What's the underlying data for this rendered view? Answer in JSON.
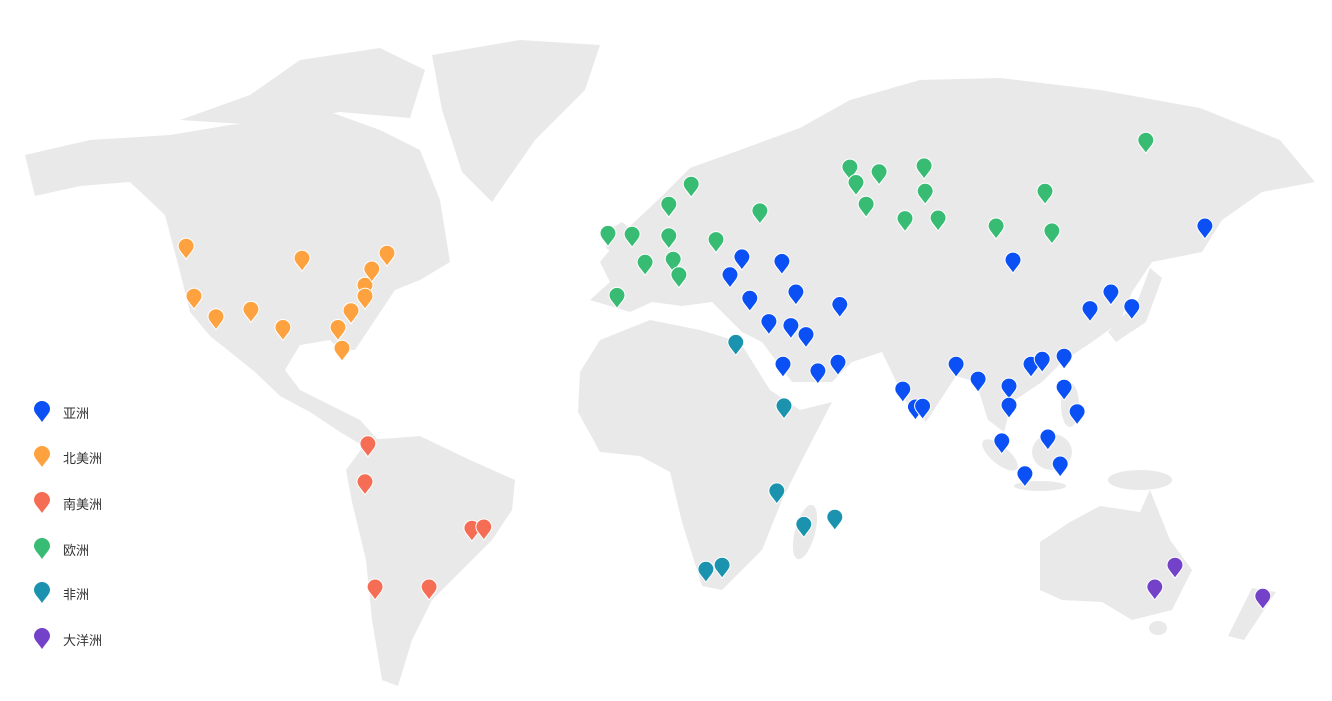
{
  "projection": "miller",
  "land_color": "#e9e9e9",
  "legend": [
    {
      "key": "asia",
      "label": "亚洲",
      "color": "#0a50f5"
    },
    {
      "key": "north_america",
      "label": "北美洲",
      "color": "#fea23f"
    },
    {
      "key": "south_america",
      "label": "南美洲",
      "color": "#f66d55"
    },
    {
      "key": "europe",
      "label": "欧洲",
      "color": "#38bc74"
    },
    {
      "key": "africa",
      "label": "非洲",
      "color": "#1c93ae"
    },
    {
      "key": "oceania",
      "label": "大洋洲",
      "color": "#7441c9"
    }
  ],
  "markers": {
    "asia": [
      [
        47.5,
        29.7
      ],
      [
        43.5,
        26.4
      ],
      [
        46.5,
        40.8
      ],
      [
        38,
        31.9
      ],
      [
        39.5,
        44.7
      ],
      [
        32.3,
        37.2
      ],
      [
        31.3,
        43.3
      ],
      [
        29,
        47.5
      ],
      [
        36.5,
        56.9
      ],
      [
        21.3,
        41.1
      ],
      [
        19.5,
        50.8
      ],
      [
        21.8,
        56.4
      ],
      [
        14.6,
        74.4
      ],
      [
        9.7,
        77.9
      ],
      [
        9.9,
        79.9
      ],
      [
        21.3,
        89.2
      ],
      [
        17.3,
        95.3
      ],
      [
        15.4,
        103.9
      ],
      [
        10.2,
        103.9
      ],
      [
        0.3,
        101.9
      ],
      [
        -8.8,
        108.3
      ],
      [
        1.4,
        114.7
      ],
      [
        -6.1,
        118.1
      ],
      [
        21.3,
        110
      ],
      [
        22.6,
        113.1
      ],
      [
        23.4,
        119.2
      ],
      [
        15.1,
        119.2
      ],
      [
        8.4,
        122.8
      ],
      [
        46.8,
        105
      ],
      [
        35.5,
        126.4
      ],
      [
        39.5,
        132.2
      ],
      [
        36,
        138
      ],
      [
        54,
        158.3
      ]
    ],
    "north_america": [
      [
        49.8,
        -124.7
      ],
      [
        38.5,
        -122.5
      ],
      [
        33.5,
        -116.4
      ],
      [
        35.3,
        -106.7
      ],
      [
        30.8,
        -97.8
      ],
      [
        47.2,
        -92.5
      ],
      [
        30.8,
        -82.5
      ],
      [
        25.5,
        -81.4
      ],
      [
        35,
        -78.9
      ],
      [
        41.1,
        -75
      ],
      [
        38.5,
        -75
      ],
      [
        44.8,
        -73.1
      ],
      [
        48.3,
        -68.9
      ]
    ],
    "south_america": [
      [
        -0.5,
        -74.2
      ],
      [
        -11,
        -75
      ],
      [
        -23.5,
        -45.3
      ],
      [
        -23.2,
        -42
      ],
      [
        -38.3,
        -72.2
      ],
      [
        -38.3,
        -57.2
      ]
    ],
    "europe": [
      [
        52.5,
        -7.5
      ],
      [
        52.3,
        -0.8
      ],
      [
        38.7,
        -5
      ],
      [
        46.3,
        2.8
      ],
      [
        52,
        9.4
      ],
      [
        47,
        10.6
      ],
      [
        43.5,
        12.2
      ],
      [
        58.3,
        9.4
      ],
      [
        62,
        15.6
      ],
      [
        51.2,
        22.5
      ],
      [
        57,
        34.7
      ],
      [
        65,
        59.7
      ],
      [
        62.3,
        61.4
      ],
      [
        64.2,
        67.8
      ],
      [
        58.3,
        64.2
      ],
      [
        65.2,
        80.3
      ],
      [
        60.7,
        80.6
      ],
      [
        55.5,
        75
      ],
      [
        55.6,
        84.2
      ],
      [
        54,
        100.3
      ],
      [
        60.7,
        113.9
      ],
      [
        53,
        115.8
      ],
      [
        69.4,
        141.9
      ]
    ],
    "africa": [
      [
        27,
        28
      ],
      [
        10,
        41.4
      ],
      [
        -13.5,
        39.4
      ],
      [
        -22.5,
        46.9
      ],
      [
        -20.6,
        55.5
      ],
      [
        -34,
        19.7
      ],
      [
        -33,
        24.2
      ]
    ],
    "oceania": [
      [
        -33,
        150
      ],
      [
        -38.3,
        144.4
      ],
      [
        -40.5,
        174.4
      ]
    ]
  }
}
